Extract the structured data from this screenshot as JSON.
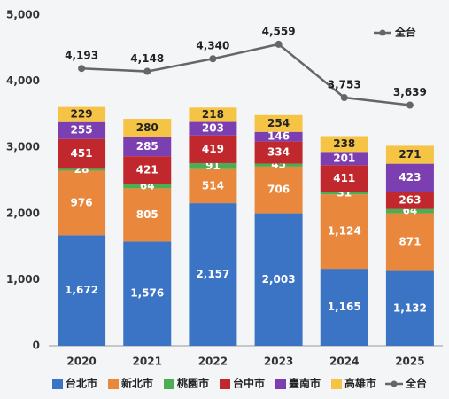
{
  "chart_data": {
    "type": "bar",
    "stacked": true,
    "categories": [
      "2020",
      "2021",
      "2022",
      "2023",
      "2024",
      "2025"
    ],
    "ylim": [
      0,
      5000
    ],
    "yticks": [
      0,
      {
        "value": 1000,
        "label": "1,000"
      },
      {
        "value": 2000,
        "label": "2,000"
      },
      {
        "value": 3000,
        "label": "3,000"
      },
      {
        "value": 4000,
        "label": "4,000"
      },
      {
        "value": 5000,
        "label": "5,000"
      }
    ],
    "series": [
      {
        "name": "台北市",
        "color": "#3b73c5",
        "values": [
          1672,
          1576,
          2157,
          2003,
          1165,
          1132
        ],
        "value_labels": [
          "1,672",
          "1,576",
          "2,157",
          "2,003",
          "1,165",
          "1,132"
        ]
      },
      {
        "name": "新北市",
        "color": "#e9883c",
        "values": [
          976,
          805,
          514,
          706,
          1124,
          871
        ],
        "value_labels": [
          "976",
          "805",
          "514",
          "706",
          "1,124",
          "871"
        ]
      },
      {
        "name": "桃園市",
        "color": "#4cae52",
        "values": [
          28,
          64,
          91,
          45,
          31,
          64
        ]
      },
      {
        "name": "台中市",
        "color": "#c1282e",
        "values": [
          451,
          421,
          419,
          334,
          411,
          263
        ]
      },
      {
        "name": "臺南市",
        "color": "#7b3fb2",
        "values": [
          255,
          285,
          203,
          146,
          201,
          423
        ]
      },
      {
        "name": "高雄市",
        "color": "#f6c445",
        "values": [
          229,
          280,
          218,
          254,
          238,
          271
        ]
      },
      {
        "name": "全台",
        "type": "line",
        "color": "#666666",
        "values": [
          4193,
          4148,
          4340,
          4559,
          3753,
          3639
        ],
        "value_labels": [
          "4,193",
          "4,148",
          "4,340",
          "4,559",
          "3,753",
          "3,639"
        ]
      }
    ]
  }
}
